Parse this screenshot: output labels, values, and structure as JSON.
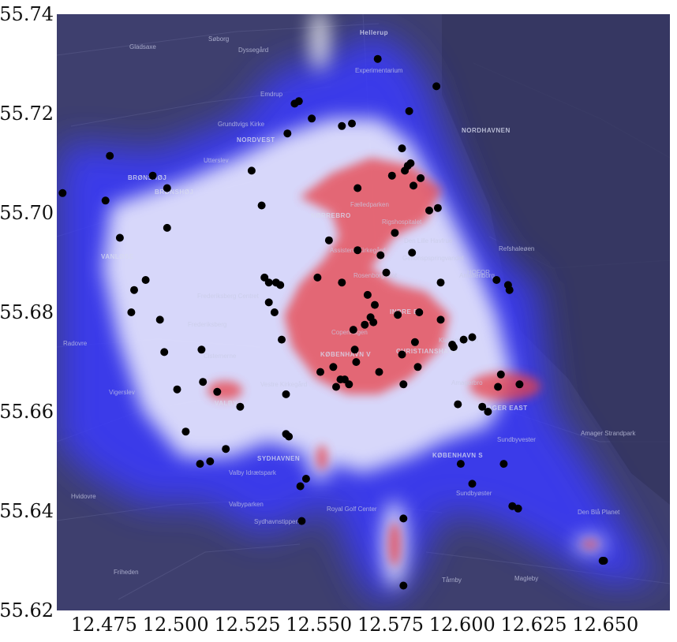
{
  "chart_data": {
    "type": "scatter",
    "title": "",
    "xlabel": "",
    "ylabel": "",
    "xlim": [
      12.4585,
      12.6725
    ],
    "ylim": [
      55.62,
      55.74
    ],
    "xticks": [
      12.475,
      12.5,
      12.525,
      12.55,
      12.575,
      12.6,
      12.625,
      12.65
    ],
    "yticks": [
      55.62,
      55.64,
      55.66,
      55.68,
      55.7,
      55.72,
      55.74
    ],
    "xtick_labels": [
      "12.475",
      "12.500",
      "12.525",
      "12.550",
      "12.575",
      "12.600",
      "12.625",
      "12.650"
    ],
    "ytick_labels": [
      "55.62",
      "55.64",
      "55.66",
      "55.68",
      "55.70",
      "55.72",
      "55.74"
    ],
    "grid": false,
    "background": "dark street map of Copenhagen with red-white-blue density heatmap overlay",
    "colors": {
      "map_background": "#3e3f6e",
      "density_high": "#e8434a",
      "density_mid": "#ffffff",
      "density_low": "#3333ff",
      "points": "#000000"
    },
    "map_labels": [
      {
        "text": "Hellerup",
        "bold": true
      },
      {
        "text": "Gladsaxe",
        "bold": false
      },
      {
        "text": "Søborg",
        "bold": false
      },
      {
        "text": "Dyssegård",
        "bold": false
      },
      {
        "text": "Emdrup",
        "bold": false
      },
      {
        "text": "Experimentarium",
        "bold": false
      },
      {
        "text": "NORDVEST",
        "bold": true
      },
      {
        "text": "Grundtvigs Kirke",
        "bold": false
      },
      {
        "text": "NORDHAVNEN",
        "bold": true
      },
      {
        "text": "Utterslev",
        "bold": false
      },
      {
        "text": "BRØNSHØJ",
        "bold": true
      },
      {
        "text": "BRØNSHØJ",
        "bold": true
      },
      {
        "text": "Fælledparken",
        "bold": false
      },
      {
        "text": "NØRREBRO",
        "bold": true
      },
      {
        "text": "Rigshospitalet",
        "bold": false
      },
      {
        "text": "Den Lille Havfrue",
        "bold": false
      },
      {
        "text": "VANLØSE",
        "bold": true
      },
      {
        "text": "Assistens Kirkegård",
        "bold": false
      },
      {
        "text": "Gefionspspringvandet",
        "bold": false
      },
      {
        "text": "Refshaleøen",
        "bold": false
      },
      {
        "text": "Rosenborg Slot",
        "bold": false
      },
      {
        "text": "Amalienborg",
        "bold": false
      },
      {
        "text": "HOFOR",
        "bold": false
      },
      {
        "text": "Frederiksberg Centret",
        "bold": false
      },
      {
        "text": "INDRE BY",
        "bold": true
      },
      {
        "text": "Frederiksberg",
        "bold": false
      },
      {
        "text": "Copenhagen",
        "bold": false
      },
      {
        "text": "Radovre",
        "bold": false
      },
      {
        "text": "Cisternerne",
        "bold": false
      },
      {
        "text": "KØBENHAVN V",
        "bold": true
      },
      {
        "text": "CHRISTIANSHAVN",
        "bold": true
      },
      {
        "text": "Kløvermarken",
        "bold": false
      },
      {
        "text": "Vestre Kirkegård",
        "bold": false
      },
      {
        "text": "Amagerbro",
        "bold": false
      },
      {
        "text": "VALBY",
        "bold": true
      },
      {
        "text": "AMAGER EAST",
        "bold": true
      },
      {
        "text": "Vigerslev",
        "bold": false
      },
      {
        "text": "Sundbyvester",
        "bold": false
      },
      {
        "text": "SYDHAVNEN",
        "bold": true
      },
      {
        "text": "Valby Idrætspark",
        "bold": false
      },
      {
        "text": "KØBENHAVN S",
        "bold": true
      },
      {
        "text": "Amager Strandpark",
        "bold": false
      },
      {
        "text": "Hvidovre",
        "bold": false
      },
      {
        "text": "Sundbyøster",
        "bold": false
      },
      {
        "text": "Valbyparken",
        "bold": false
      },
      {
        "text": "Royal Golf Center",
        "bold": false
      },
      {
        "text": "Den Blå Planet",
        "bold": false
      },
      {
        "text": "Sydhavnstippen",
        "bold": false
      },
      {
        "text": "Friheden",
        "bold": false
      },
      {
        "text": "Tårnby",
        "bold": false
      },
      {
        "text": "Magleby",
        "bold": false
      }
    ],
    "points": [
      {
        "x": 12.4605,
        "y": 55.704
      },
      {
        "x": 12.477,
        "y": 55.7115
      },
      {
        "x": 12.4755,
        "y": 55.7025
      },
      {
        "x": 12.4805,
        "y": 55.695
      },
      {
        "x": 12.4855,
        "y": 55.6845
      },
      {
        "x": 12.4895,
        "y": 55.6865
      },
      {
        "x": 12.492,
        "y": 55.7075
      },
      {
        "x": 12.497,
        "y": 55.705
      },
      {
        "x": 12.497,
        "y": 55.697
      },
      {
        "x": 12.4845,
        "y": 55.68
      },
      {
        "x": 12.4945,
        "y": 55.6785
      },
      {
        "x": 12.496,
        "y": 55.672
      },
      {
        "x": 12.5005,
        "y": 55.6645
      },
      {
        "x": 12.5035,
        "y": 55.656
      },
      {
        "x": 12.509,
        "y": 55.6725
      },
      {
        "x": 12.5095,
        "y": 55.666
      },
      {
        "x": 12.5145,
        "y": 55.664
      },
      {
        "x": 12.5085,
        "y": 55.6495
      },
      {
        "x": 12.512,
        "y": 55.65
      },
      {
        "x": 12.5175,
        "y": 55.6525
      },
      {
        "x": 12.5225,
        "y": 55.661
      },
      {
        "x": 12.5265,
        "y": 55.7085
      },
      {
        "x": 12.53,
        "y": 55.7015
      },
      {
        "x": 12.531,
        "y": 55.687
      },
      {
        "x": 12.5325,
        "y": 55.686
      },
      {
        "x": 12.535,
        "y": 55.686
      },
      {
        "x": 12.5365,
        "y": 55.6855
      },
      {
        "x": 12.5325,
        "y": 55.682
      },
      {
        "x": 12.5345,
        "y": 55.68
      },
      {
        "x": 12.537,
        "y": 55.6745
      },
      {
        "x": 12.5385,
        "y": 55.6635
      },
      {
        "x": 12.5385,
        "y": 55.6555
      },
      {
        "x": 12.5395,
        "y": 55.655
      },
      {
        "x": 12.5435,
        "y": 55.645
      },
      {
        "x": 12.5455,
        "y": 55.6465
      },
      {
        "x": 12.544,
        "y": 55.638
      },
      {
        "x": 12.539,
        "y": 55.716
      },
      {
        "x": 12.5415,
        "y": 55.722
      },
      {
        "x": 12.543,
        "y": 55.7225
      },
      {
        "x": 12.5475,
        "y": 55.719
      },
      {
        "x": 12.5495,
        "y": 55.687
      },
      {
        "x": 12.5505,
        "y": 55.668
      },
      {
        "x": 12.5535,
        "y": 55.6945
      },
      {
        "x": 12.555,
        "y": 55.669
      },
      {
        "x": 12.556,
        "y": 55.665
      },
      {
        "x": 12.5575,
        "y": 55.6665
      },
      {
        "x": 12.558,
        "y": 55.686
      },
      {
        "x": 12.558,
        "y": 55.7175
      },
      {
        "x": 12.559,
        "y": 55.6665
      },
      {
        "x": 12.5605,
        "y": 55.6655
      },
      {
        "x": 12.5615,
        "y": 55.718
      },
      {
        "x": 12.562,
        "y": 55.6765
      },
      {
        "x": 12.5625,
        "y": 55.6725
      },
      {
        "x": 12.563,
        "y": 55.67
      },
      {
        "x": 12.5635,
        "y": 55.6925
      },
      {
        "x": 12.5635,
        "y": 55.705
      },
      {
        "x": 12.566,
        "y": 55.6775
      },
      {
        "x": 12.567,
        "y": 55.6835
      },
      {
        "x": 12.568,
        "y": 55.679
      },
      {
        "x": 12.569,
        "y": 55.678
      },
      {
        "x": 12.5695,
        "y": 55.6815
      },
      {
        "x": 12.5705,
        "y": 55.731
      },
      {
        "x": 12.571,
        "y": 55.668
      },
      {
        "x": 12.5715,
        "y": 55.6915
      },
      {
        "x": 12.5735,
        "y": 55.688
      },
      {
        "x": 12.5755,
        "y": 55.7075
      },
      {
        "x": 12.5765,
        "y": 55.696
      },
      {
        "x": 12.5775,
        "y": 55.6795
      },
      {
        "x": 12.579,
        "y": 55.713
      },
      {
        "x": 12.579,
        "y": 55.6715
      },
      {
        "x": 12.5795,
        "y": 55.6655
      },
      {
        "x": 12.58,
        "y": 55.7085
      },
      {
        "x": 12.581,
        "y": 55.7095
      },
      {
        "x": 12.5815,
        "y": 55.7205
      },
      {
        "x": 12.582,
        "y": 55.71
      },
      {
        "x": 12.5825,
        "y": 55.692
      },
      {
        "x": 12.583,
        "y": 55.7055
      },
      {
        "x": 12.5835,
        "y": 55.674
      },
      {
        "x": 12.5845,
        "y": 55.669
      },
      {
        "x": 12.585,
        "y": 55.68
      },
      {
        "x": 12.5855,
        "y": 55.707
      },
      {
        "x": 12.5795,
        "y": 55.6385
      },
      {
        "x": 12.5795,
        "y": 55.625
      },
      {
        "x": 12.5885,
        "y": 55.7005
      },
      {
        "x": 12.591,
        "y": 55.7255
      },
      {
        "x": 12.5915,
        "y": 55.701
      },
      {
        "x": 12.5925,
        "y": 55.686
      },
      {
        "x": 12.5925,
        "y": 55.6785
      },
      {
        "x": 12.5965,
        "y": 55.6735
      },
      {
        "x": 12.597,
        "y": 55.673
      },
      {
        "x": 12.5985,
        "y": 55.6615
      },
      {
        "x": 12.5995,
        "y": 55.6495
      },
      {
        "x": 12.6005,
        "y": 55.6745
      },
      {
        "x": 12.6035,
        "y": 55.675
      },
      {
        "x": 12.6035,
        "y": 55.6455
      },
      {
        "x": 12.607,
        "y": 55.661
      },
      {
        "x": 12.609,
        "y": 55.66
      },
      {
        "x": 12.612,
        "y": 55.6865
      },
      {
        "x": 12.6125,
        "y": 55.665
      },
      {
        "x": 12.6135,
        "y": 55.6675
      },
      {
        "x": 12.6145,
        "y": 55.6495
      },
      {
        "x": 12.616,
        "y": 55.6855
      },
      {
        "x": 12.6165,
        "y": 55.6845
      },
      {
        "x": 12.6175,
        "y": 55.641
      },
      {
        "x": 12.6195,
        "y": 55.6405
      },
      {
        "x": 12.62,
        "y": 55.6655
      },
      {
        "x": 12.649,
        "y": 55.63
      },
      {
        "x": 12.6495,
        "y": 55.63
      }
    ]
  }
}
